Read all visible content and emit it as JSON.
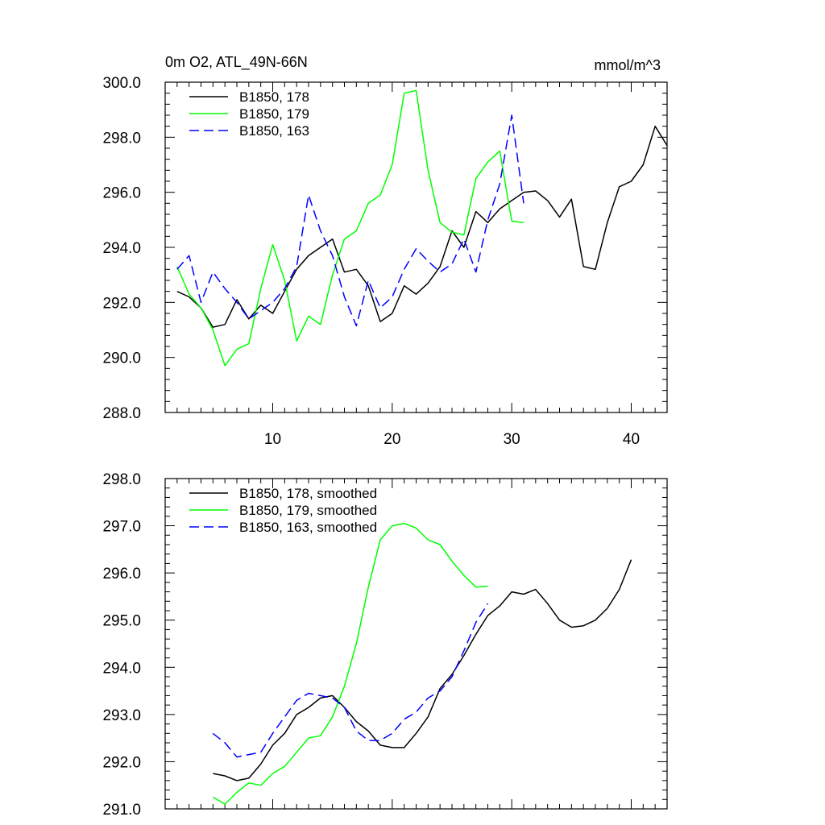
{
  "chart_data": [
    {
      "type": "line",
      "title": "0m O2, ATL_49N-66N",
      "units": "mmol/m^3",
      "xlabel": "",
      "ylabel": "",
      "xlim": [
        1,
        43
      ],
      "ylim": [
        288.0,
        300.0
      ],
      "xticks": [
        10,
        20,
        30,
        40
      ],
      "xtick_labels": [
        "10",
        "20",
        "30",
        "40"
      ],
      "yticks": [
        288.0,
        290.0,
        292.0,
        294.0,
        296.0,
        298.0,
        300.0
      ],
      "ytick_labels": [
        "288.0",
        "290.0",
        "292.0",
        "294.0",
        "296.0",
        "298.0",
        "300.0"
      ],
      "legend_position": "top-left",
      "series": [
        {
          "name": "B1850, 178",
          "color": "#000000",
          "dash": "solid",
          "x": [
            2,
            3,
            4,
            5,
            6,
            7,
            8,
            9,
            10,
            11,
            12,
            13,
            14,
            15,
            16,
            17,
            18,
            19,
            20,
            21,
            22,
            23,
            24,
            25,
            26,
            27,
            28,
            29,
            30,
            31,
            32,
            33,
            34,
            35,
            36,
            37,
            38,
            39,
            40,
            41,
            42,
            43
          ],
          "values": [
            292.4,
            292.2,
            291.8,
            291.1,
            291.2,
            292.1,
            291.4,
            291.9,
            291.6,
            292.4,
            293.2,
            293.7,
            294.0,
            294.3,
            293.1,
            293.2,
            292.6,
            291.3,
            291.6,
            292.6,
            292.3,
            292.7,
            293.3,
            294.6,
            294.0,
            295.3,
            294.9,
            295.4,
            295.7,
            296.0,
            296.05,
            295.7,
            295.1,
            295.75,
            293.3,
            293.2,
            294.9,
            296.2,
            296.4,
            297.0,
            298.4,
            297.7
          ]
        },
        {
          "name": "B1850, 179",
          "color": "#00ff00",
          "dash": "solid",
          "x": [
            2,
            3,
            4,
            5,
            6,
            7,
            8,
            9,
            10,
            11,
            12,
            13,
            14,
            15,
            16,
            17,
            18,
            19,
            20,
            21,
            22,
            23,
            24,
            25,
            26,
            27,
            28,
            29,
            30,
            31
          ],
          "values": [
            293.3,
            292.3,
            291.8,
            291.0,
            289.7,
            290.3,
            290.5,
            292.5,
            294.1,
            292.8,
            290.6,
            291.5,
            291.2,
            293.0,
            294.3,
            294.6,
            295.6,
            295.9,
            297.0,
            299.6,
            299.7,
            296.8,
            294.9,
            294.55,
            294.45,
            296.5,
            297.1,
            297.5,
            294.95,
            294.9
          ]
        },
        {
          "name": "B1850, 163",
          "color": "#0000ff",
          "dash": "dashed",
          "x": [
            2,
            3,
            4,
            5,
            6,
            7,
            8,
            9,
            10,
            11,
            12,
            13,
            14,
            15,
            16,
            17,
            18,
            19,
            20,
            21,
            22,
            23,
            24,
            25,
            26,
            27,
            28,
            29,
            30,
            31
          ],
          "values": [
            293.2,
            293.7,
            292.0,
            293.1,
            292.5,
            292.0,
            291.4,
            291.7,
            292.0,
            292.5,
            293.3,
            295.9,
            294.6,
            293.7,
            292.2,
            291.15,
            292.8,
            291.8,
            292.2,
            293.2,
            293.95,
            293.5,
            293.1,
            293.4,
            294.3,
            293.1,
            295.0,
            296.3,
            298.8,
            295.6
          ]
        }
      ]
    },
    {
      "type": "line",
      "title": "",
      "xlabel": "",
      "ylabel": "",
      "xlim": [
        1,
        43
      ],
      "ylim": [
        291.0,
        298.0
      ],
      "xticks": [
        10,
        20,
        30,
        40
      ],
      "yticks": [
        291.0,
        292.0,
        293.0,
        294.0,
        295.0,
        296.0,
        297.0,
        298.0
      ],
      "ytick_labels": [
        "291.0",
        "292.0",
        "293.0",
        "294.0",
        "295.0",
        "296.0",
        "297.0",
        "298.0"
      ],
      "legend_position": "top-left",
      "series": [
        {
          "name": "B1850, 178, smoothed",
          "color": "#000000",
          "dash": "solid",
          "x": [
            5,
            6,
            7,
            8,
            9,
            10,
            11,
            12,
            13,
            14,
            15,
            16,
            17,
            18,
            19,
            20,
            21,
            22,
            23,
            24,
            25,
            26,
            27,
            28,
            29,
            30,
            31,
            32,
            33,
            34,
            35,
            36,
            37,
            38,
            39,
            40
          ],
          "values": [
            291.75,
            291.7,
            291.6,
            291.65,
            291.95,
            292.35,
            292.6,
            293.0,
            293.15,
            293.35,
            293.4,
            293.15,
            292.85,
            292.65,
            292.35,
            292.3,
            292.3,
            292.6,
            292.95,
            293.55,
            293.85,
            294.25,
            294.7,
            295.1,
            295.3,
            295.6,
            295.55,
            295.65,
            295.35,
            295.0,
            294.85,
            294.88,
            295.0,
            295.25,
            295.65,
            296.28
          ]
        },
        {
          "name": "B1850, 179, smoothed",
          "color": "#00ff00",
          "dash": "solid",
          "x": [
            5,
            6,
            7,
            8,
            9,
            10,
            11,
            12,
            13,
            14,
            15,
            16,
            17,
            18,
            19,
            20,
            21,
            22,
            23,
            24,
            25,
            26,
            27,
            28
          ],
          "values": [
            291.25,
            291.1,
            291.35,
            291.55,
            291.5,
            291.75,
            291.9,
            292.2,
            292.5,
            292.55,
            292.95,
            293.6,
            294.5,
            295.7,
            296.7,
            297.0,
            297.05,
            296.95,
            296.7,
            296.6,
            296.25,
            295.95,
            295.7,
            295.72
          ]
        },
        {
          "name": "B1850, 163, smoothed",
          "color": "#0000ff",
          "dash": "dashed",
          "x": [
            5,
            6,
            7,
            8,
            9,
            10,
            11,
            12,
            13,
            14,
            15,
            16,
            17,
            18,
            19,
            20,
            21,
            22,
            23,
            24,
            25,
            26,
            27,
            28
          ],
          "values": [
            292.6,
            292.4,
            292.1,
            292.15,
            292.2,
            292.6,
            292.95,
            293.3,
            293.45,
            293.4,
            293.35,
            293.15,
            292.65,
            292.45,
            292.45,
            292.6,
            292.9,
            293.05,
            293.35,
            293.5,
            293.8,
            294.35,
            294.95,
            295.35
          ]
        }
      ]
    }
  ]
}
